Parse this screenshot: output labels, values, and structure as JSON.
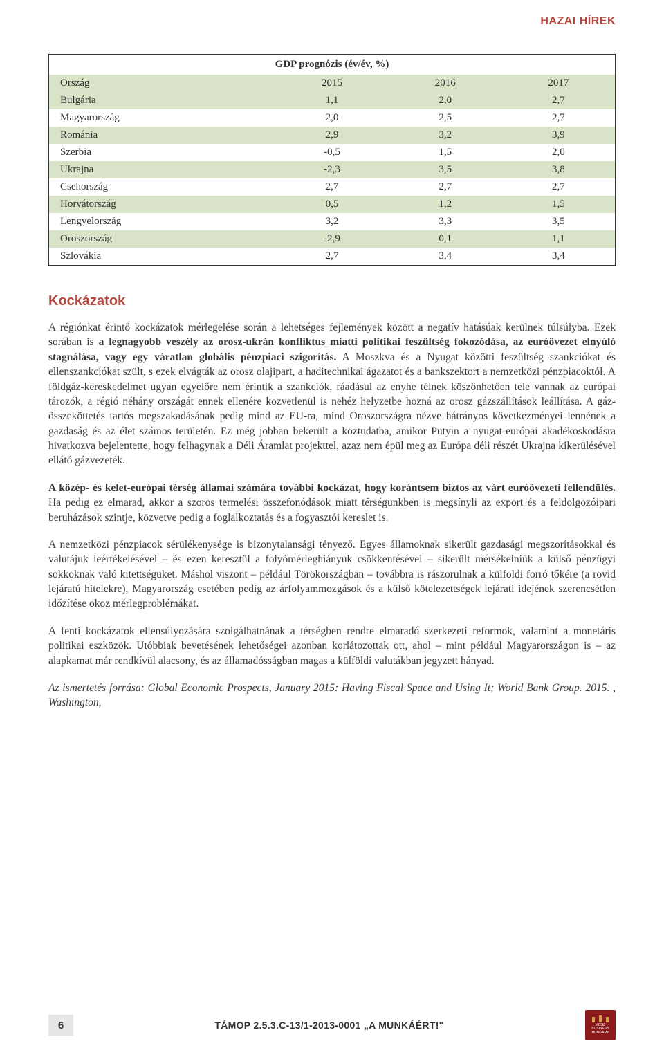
{
  "header": {
    "section_title": "HAZAI HÍREK"
  },
  "table": {
    "title": "GDP prognózis (év/év, %)",
    "header_row": [
      "Ország",
      "2015",
      "2016",
      "2017"
    ],
    "rows": [
      {
        "country": "Bulgária",
        "y2015": "1,1",
        "y2016": "2,0",
        "y2017": "2,7",
        "shade": "row-green"
      },
      {
        "country": "Magyarország",
        "y2015": "2,0",
        "y2016": "2,5",
        "y2017": "2,7",
        "shade": "row-white"
      },
      {
        "country": "Románia",
        "y2015": "2,9",
        "y2016": "3,2",
        "y2017": "3,9",
        "shade": "row-green"
      },
      {
        "country": "Szerbia",
        "y2015": "-0,5",
        "y2016": "1,5",
        "y2017": "2,0",
        "shade": "row-white"
      },
      {
        "country": "Ukrajna",
        "y2015": "-2,3",
        "y2016": "3,5",
        "y2017": "3,8",
        "shade": "row-green"
      },
      {
        "country": "Csehország",
        "y2015": "2,7",
        "y2016": "2,7",
        "y2017": "2,7",
        "shade": "row-white"
      },
      {
        "country": "Horvátország",
        "y2015": "0,5",
        "y2016": "1,2",
        "y2017": "1,5",
        "shade": "row-green"
      },
      {
        "country": "Lengyelország",
        "y2015": "3,2",
        "y2016": "3,3",
        "y2017": "3,5",
        "shade": "row-white"
      },
      {
        "country": "Oroszország",
        "y2015": "-2,9",
        "y2016": "0,1",
        "y2017": "1,1",
        "shade": "row-green"
      },
      {
        "country": "Szlovákia",
        "y2015": "2,7",
        "y2016": "3,4",
        "y2017": "3,4",
        "shade": "row-white"
      }
    ]
  },
  "section": {
    "heading": "Kockázatok"
  },
  "paragraphs": {
    "p1_a": "A régiónkat érintő kockázatok mérlegelése során a lehetséges fejlemények között a negatív hatásúak kerülnek túlsúlyba. Ezek sorában is ",
    "p1_b": "a legnagyobb veszély az orosz-ukrán konfliktus miatti politikai feszültség fokozódása, az euróövezet elnyúló stagnálása, vagy egy váratlan globális pénzpiaci szigorítás.",
    "p1_c": " A Moszkva és a Nyugat közötti feszültség szankciókat és ellenszankciókat szült, s ezek elvágták az orosz olajipart, a haditechnikai ágazatot és a bankszektort a nemzetközi pénzpiacoktól. A földgáz-kereskedelmet ugyan egyelőre nem érintik a szankciók, ráadásul az enyhe télnek köszönhetően tele vannak az európai tározók, a régió néhány országát ennek ellenére közvetlenül is nehéz helyzetbe hozná az orosz gázszállítások leállítása. A gáz-összeköttetés tartós megszakadásának pedig mind az EU-ra, mind Oroszországra nézve hátrányos következményei lennének a gazdaság és az élet számos területén. Ez még jobban bekerült a köztudatba, amikor Putyin a nyugat-európai akadékoskodásra hivatkozva bejelentette, hogy felhagynak a Déli Áramlat projekttel, azaz nem épül meg az Európa déli részét Ukrajna kikerülésével ellátó gázvezeték.",
    "p2_a": "A közép- és kelet-európai térség államai számára további kockázat, hogy korántsem biztos az várt euróövezeti fellendülés.",
    "p2_b": " Ha pedig ez elmarad, akkor a szoros termelési összefonódások miatt térségünkben is megsínyli az export és a feldolgozóipari beruházások szintje, közvetve pedig a foglalkoztatás és a fogyasztói kereslet is.",
    "p3": "A nemzetközi pénzpiacok sérülékenysége is bizonytalansági tényező. Egyes államoknak sikerült gazdasági megszorításokkal és valutájuk leértékelésével – és ezen keresztül a folyómérleghiányuk csökkentésével – sikerült mérsékelniük a külső pénzügyi sokkoknak való kitettségüket. Máshol viszont – például Törökországban – továbbra is rászorulnak a külföldi forró tőkére (a rövid lejáratú hitelekre), Magyarország esetében pedig az árfolyammozgások és a külső kötelezettségek lejárati idejének szerencsétlen időzítése okoz mérlegproblémákat.",
    "p4": "A fenti kockázatok ellensúlyozására szolgálhatnának a térségben rendre elmaradó szerkezeti reformok, valamint a monetáris politikai eszközök. Utóbbiak bevetésének lehetőségei azonban korlátozottak ott, ahol – mint például Magyarországon is – az alapkamat már rendkívül alacsony, és az államadósságban magas a külföldi valutákban jegyzett hányad.",
    "source": "Az ismertetés forrása: Global Economic Prospects, January 2015: Having Fiscal Space and Using It; World Bank Group. 2015. , Washington,"
  },
  "footer": {
    "page_number": "6",
    "project_code": "TÁMOP 2.5.3.C-13/1-2013-0001 „A MUNKÁÉRT!\"",
    "logo_line1": "MOSZ",
    "logo_line2": "BUSINESS",
    "logo_line3": "HUNGARY"
  },
  "colors": {
    "accent_red": "#b8483f",
    "table_green": "#d9e3c7",
    "table_border": "#333333",
    "text_body": "#3a3a3a",
    "page_box_bg": "#e6e6e6",
    "logo_bg": "#8b1a1a",
    "logo_gold": "#d4a74a"
  },
  "typography": {
    "heading_family": "Arial",
    "body_family": "Georgia",
    "body_size_pt": 12,
    "heading_size_pt": 15
  }
}
